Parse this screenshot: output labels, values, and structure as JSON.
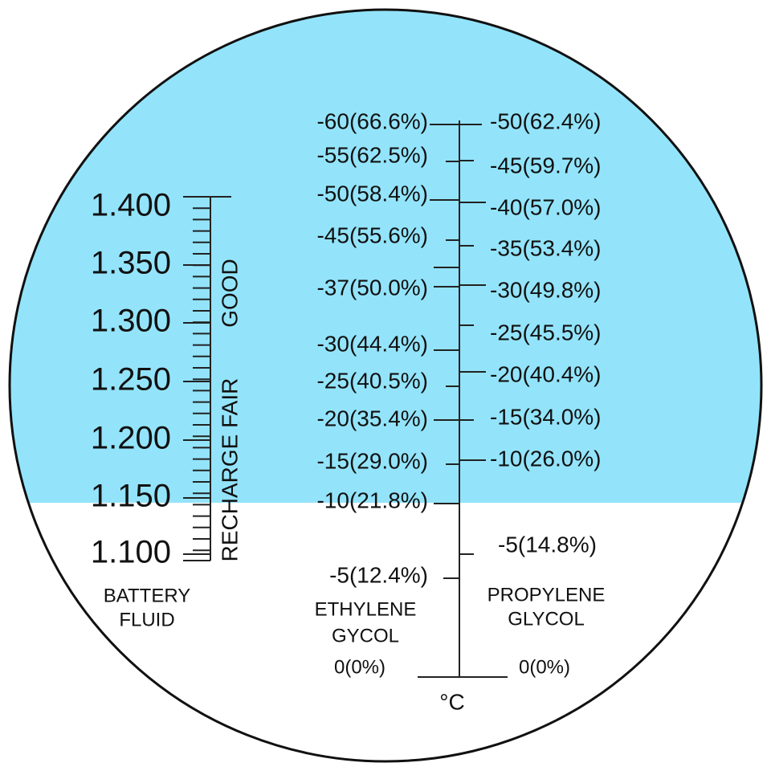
{
  "battery_scale": {
    "labels": [
      "1.400",
      "1.350",
      "1.300",
      "1.250",
      "1.200",
      "1.150",
      "1.100"
    ],
    "zones": [
      "GOOD",
      "RECHARGE FAIR"
    ],
    "caption": [
      "BATTERY",
      "FLUID"
    ]
  },
  "ethylene_scale": {
    "labels": [
      "-60(66.6%)",
      "-55(62.5%)",
      "-50(58.4%)",
      "-45(55.6%)",
      "-37(50.0%)",
      "-30(44.4%)",
      "-25(40.5%)",
      "-20(35.4%)",
      "-15(29.0%)",
      "-10(21.8%)",
      "-5(12.4%)",
      "0(0%)"
    ],
    "caption": [
      "ETHYLENE",
      "GYCOL"
    ]
  },
  "propylene_scale": {
    "labels": [
      "-50(62.4%)",
      "-45(59.7%)",
      "-40(57.0%)",
      "-35(53.4%)",
      "-30(49.8%)",
      "-25(45.5%)",
      "-20(40.4%)",
      "-15(34.0%)",
      "-10(26.0%)",
      "-5(14.8%)",
      "0(0%)"
    ],
    "caption": [
      "PROPYLENE",
      "GLYCOL"
    ]
  },
  "unit": "°C"
}
